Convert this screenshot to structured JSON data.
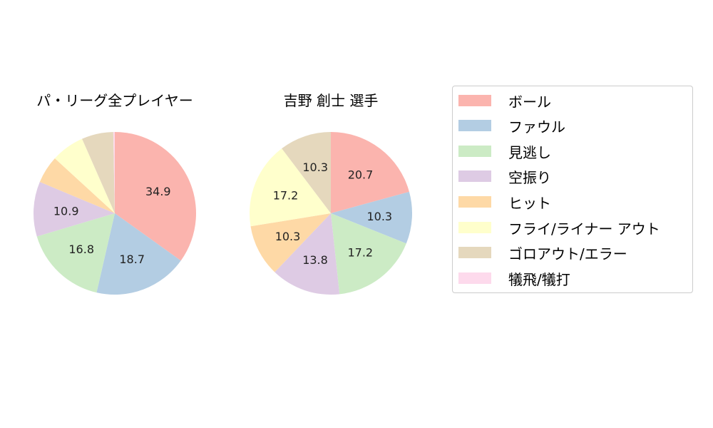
{
  "chart_data": [
    {
      "type": "pie",
      "title": "パ・リーグ全プレイヤー",
      "slices": [
        {
          "label": "ボール",
          "value": 34.9,
          "shown": "34.9"
        },
        {
          "label": "ファウル",
          "value": 18.7,
          "shown": "18.7"
        },
        {
          "label": "見逃し",
          "value": 16.8,
          "shown": "16.8"
        },
        {
          "label": "空振り",
          "value": 10.9,
          "shown": "10.9"
        },
        {
          "label": "ヒット",
          "value": 5.5,
          "shown": ""
        },
        {
          "label": "フライ/ライナー アウト",
          "value": 6.6,
          "shown": ""
        },
        {
          "label": "ゴロアウト/エラー",
          "value": 6.3,
          "shown": ""
        },
        {
          "label": "犠飛/犠打",
          "value": 0.3,
          "shown": ""
        }
      ]
    },
    {
      "type": "pie",
      "title": "吉野 創士 選手",
      "slices": [
        {
          "label": "ボール",
          "value": 20.7,
          "shown": "20.7"
        },
        {
          "label": "ファウル",
          "value": 10.3,
          "shown": "10.3"
        },
        {
          "label": "見逃し",
          "value": 17.2,
          "shown": "17.2"
        },
        {
          "label": "空振り",
          "value": 13.8,
          "shown": "13.8"
        },
        {
          "label": "ヒット",
          "value": 10.3,
          "shown": "10.3"
        },
        {
          "label": "フライ/ライナー アウト",
          "value": 17.2,
          "shown": "17.2"
        },
        {
          "label": "ゴロアウト/エラー",
          "value": 10.3,
          "shown": "10.3"
        },
        {
          "label": "犠飛/犠打",
          "value": 0,
          "shown": ""
        }
      ]
    }
  ],
  "legend": {
    "placement": "right",
    "items": [
      {
        "label": "ボール",
        "color": "#fbb4ae"
      },
      {
        "label": "ファウル",
        "color": "#b3cde3"
      },
      {
        "label": "見逃し",
        "color": "#ccebc5"
      },
      {
        "label": "空振り",
        "color": "#decbe4"
      },
      {
        "label": "ヒット",
        "color": "#fed9a6"
      },
      {
        "label": "フライ/ライナー アウト",
        "color": "#ffffcc"
      },
      {
        "label": "ゴロアウト/エラー",
        "color": "#e5d8bd"
      },
      {
        "label": "犠飛/犠打",
        "color": "#fddaec"
      }
    ]
  }
}
